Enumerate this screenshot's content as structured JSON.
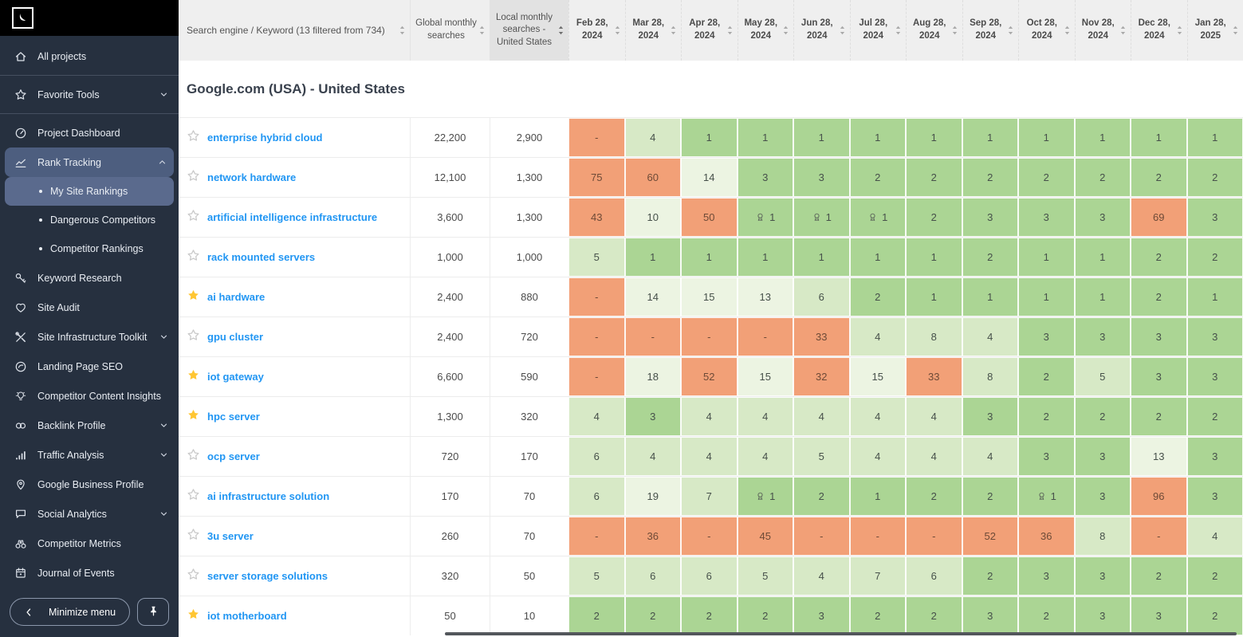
{
  "colors": {
    "sidebar_bg": "#26303f",
    "active_item": "#4d5e7f",
    "active_subitem": "#5a6a8d",
    "orange": "#f2a077",
    "green_strong": "#abd594",
    "green_light": "#d7e9c6",
    "green_pale": "#ecf4e2",
    "keyword_blue": "#2196f3",
    "favorite_yellow": "#ffc633"
  },
  "sidebar": {
    "minimize_label": "Minimize menu",
    "items": [
      {
        "label": "All projects",
        "icon": "home",
        "divider_after": true
      },
      {
        "label": "Favorite Tools",
        "icon": "star",
        "chevron": "down",
        "divider_after": true
      },
      {
        "label": "Project Dashboard",
        "icon": "dashboard"
      },
      {
        "label": "Rank Tracking",
        "icon": "chart-line",
        "chevron": "up",
        "active": true,
        "children": [
          "My Site Rankings",
          "Dangerous Competitors",
          "Competitor Rankings"
        ],
        "active_child": 0
      },
      {
        "label": "Keyword Research",
        "icon": "key"
      },
      {
        "label": "Site Audit",
        "icon": "heart"
      },
      {
        "label": "Site Infrastructure Toolkit",
        "icon": "tools",
        "chevron": "down"
      },
      {
        "label": "Landing Page SEO",
        "icon": "gauge"
      },
      {
        "label": "Competitor Content Insights",
        "icon": "bulb"
      },
      {
        "label": "Backlink Profile",
        "icon": "link",
        "chevron": "down"
      },
      {
        "label": "Traffic Analysis",
        "icon": "bar-chart",
        "chevron": "down"
      },
      {
        "label": "Google Business Profile",
        "icon": "map-pin"
      },
      {
        "label": "Social Analytics",
        "icon": "chat",
        "chevron": "down"
      },
      {
        "label": "Competitor Metrics",
        "icon": "binoculars"
      },
      {
        "label": "Journal of Events",
        "icon": "calendar"
      }
    ]
  },
  "table": {
    "keyword_header": "Search engine / Keyword (13 filtered from 734)",
    "global_header": "Global monthly searches",
    "local_header": "Local monthly searches - United States",
    "section_title": "Google.com (USA) - United States",
    "date_headers": [
      "Feb 28, 2024",
      "Mar 28, 2024",
      "Apr 28, 2024",
      "May 28, 2024",
      "Jun 28, 2024",
      "Jul 28, 2024",
      "Aug 28, 2024",
      "Sep 28, 2024",
      "Oct 28, 2024",
      "Nov 28, 2024",
      "Dec 28, 2024",
      "Jan 28, 2025"
    ],
    "rows": [
      {
        "keyword": "enterprise hybrid cloud",
        "favorite": false,
        "global": "22,200",
        "local": "2,900",
        "cells": [
          {
            "v": "-",
            "c": "or"
          },
          {
            "v": "4",
            "c": "g2"
          },
          {
            "v": "1",
            "c": "g1"
          },
          {
            "v": "1",
            "c": "g1"
          },
          {
            "v": "1",
            "c": "g1"
          },
          {
            "v": "1",
            "c": "g1"
          },
          {
            "v": "1",
            "c": "g1"
          },
          {
            "v": "1",
            "c": "g1"
          },
          {
            "v": "1",
            "c": "g1"
          },
          {
            "v": "1",
            "c": "g1"
          },
          {
            "v": "1",
            "c": "g1"
          },
          {
            "v": "1",
            "c": "g1"
          }
        ]
      },
      {
        "keyword": "network hardware",
        "favorite": false,
        "global": "12,100",
        "local": "1,300",
        "cells": [
          {
            "v": "75",
            "c": "or"
          },
          {
            "v": "60",
            "c": "or"
          },
          {
            "v": "14",
            "c": "g3"
          },
          {
            "v": "3",
            "c": "g1"
          },
          {
            "v": "3",
            "c": "g1"
          },
          {
            "v": "2",
            "c": "g1"
          },
          {
            "v": "2",
            "c": "g1"
          },
          {
            "v": "2",
            "c": "g1"
          },
          {
            "v": "2",
            "c": "g1"
          },
          {
            "v": "2",
            "c": "g1"
          },
          {
            "v": "2",
            "c": "g1"
          },
          {
            "v": "2",
            "c": "g1"
          }
        ]
      },
      {
        "keyword": "artificial intelligence infrastructure",
        "favorite": false,
        "global": "3,600",
        "local": "1,300",
        "cells": [
          {
            "v": "43",
            "c": "or"
          },
          {
            "v": "10",
            "c": "g3"
          },
          {
            "v": "50",
            "c": "or"
          },
          {
            "v": "1",
            "c": "g1",
            "badge": true
          },
          {
            "v": "1",
            "c": "g1",
            "badge": true
          },
          {
            "v": "1",
            "c": "g1",
            "badge": true
          },
          {
            "v": "2",
            "c": "g1"
          },
          {
            "v": "3",
            "c": "g1"
          },
          {
            "v": "3",
            "c": "g1"
          },
          {
            "v": "3",
            "c": "g1"
          },
          {
            "v": "69",
            "c": "or"
          },
          {
            "v": "3",
            "c": "g1"
          }
        ]
      },
      {
        "keyword": "rack mounted servers",
        "favorite": false,
        "global": "1,000",
        "local": "1,000",
        "cells": [
          {
            "v": "5",
            "c": "g2"
          },
          {
            "v": "1",
            "c": "g1"
          },
          {
            "v": "1",
            "c": "g1"
          },
          {
            "v": "1",
            "c": "g1"
          },
          {
            "v": "1",
            "c": "g1"
          },
          {
            "v": "1",
            "c": "g1"
          },
          {
            "v": "1",
            "c": "g1"
          },
          {
            "v": "2",
            "c": "g1"
          },
          {
            "v": "1",
            "c": "g1"
          },
          {
            "v": "1",
            "c": "g1"
          },
          {
            "v": "2",
            "c": "g1"
          },
          {
            "v": "2",
            "c": "g1"
          }
        ]
      },
      {
        "keyword": "ai hardware",
        "favorite": true,
        "global": "2,400",
        "local": "880",
        "cells": [
          {
            "v": "-",
            "c": "or"
          },
          {
            "v": "14",
            "c": "g3"
          },
          {
            "v": "15",
            "c": "g3"
          },
          {
            "v": "13",
            "c": "g3"
          },
          {
            "v": "6",
            "c": "g2"
          },
          {
            "v": "2",
            "c": "g1"
          },
          {
            "v": "1",
            "c": "g1"
          },
          {
            "v": "1",
            "c": "g1"
          },
          {
            "v": "1",
            "c": "g1"
          },
          {
            "v": "1",
            "c": "g1"
          },
          {
            "v": "2",
            "c": "g1"
          },
          {
            "v": "1",
            "c": "g1"
          }
        ]
      },
      {
        "keyword": "gpu cluster",
        "favorite": false,
        "global": "2,400",
        "local": "720",
        "cells": [
          {
            "v": "-",
            "c": "or"
          },
          {
            "v": "-",
            "c": "or"
          },
          {
            "v": "-",
            "c": "or"
          },
          {
            "v": "-",
            "c": "or"
          },
          {
            "v": "33",
            "c": "or"
          },
          {
            "v": "4",
            "c": "g2"
          },
          {
            "v": "8",
            "c": "g2"
          },
          {
            "v": "4",
            "c": "g2"
          },
          {
            "v": "3",
            "c": "g1"
          },
          {
            "v": "3",
            "c": "g1"
          },
          {
            "v": "3",
            "c": "g1"
          },
          {
            "v": "3",
            "c": "g1"
          }
        ]
      },
      {
        "keyword": "iot gateway",
        "favorite": true,
        "global": "6,600",
        "local": "590",
        "cells": [
          {
            "v": "-",
            "c": "or"
          },
          {
            "v": "18",
            "c": "g3"
          },
          {
            "v": "52",
            "c": "or"
          },
          {
            "v": "15",
            "c": "g3"
          },
          {
            "v": "32",
            "c": "or"
          },
          {
            "v": "15",
            "c": "g3"
          },
          {
            "v": "33",
            "c": "or"
          },
          {
            "v": "8",
            "c": "g2"
          },
          {
            "v": "2",
            "c": "g1"
          },
          {
            "v": "5",
            "c": "g2"
          },
          {
            "v": "3",
            "c": "g1"
          },
          {
            "v": "3",
            "c": "g1"
          }
        ]
      },
      {
        "keyword": "hpc server",
        "favorite": true,
        "global": "1,300",
        "local": "320",
        "cells": [
          {
            "v": "4",
            "c": "g2"
          },
          {
            "v": "3",
            "c": "g1"
          },
          {
            "v": "4",
            "c": "g2"
          },
          {
            "v": "4",
            "c": "g2"
          },
          {
            "v": "4",
            "c": "g2"
          },
          {
            "v": "4",
            "c": "g2"
          },
          {
            "v": "4",
            "c": "g2"
          },
          {
            "v": "3",
            "c": "g1"
          },
          {
            "v": "2",
            "c": "g1"
          },
          {
            "v": "2",
            "c": "g1"
          },
          {
            "v": "2",
            "c": "g1"
          },
          {
            "v": "2",
            "c": "g1"
          }
        ]
      },
      {
        "keyword": "ocp server",
        "favorite": false,
        "global": "720",
        "local": "170",
        "cells": [
          {
            "v": "6",
            "c": "g2"
          },
          {
            "v": "4",
            "c": "g2"
          },
          {
            "v": "4",
            "c": "g2"
          },
          {
            "v": "4",
            "c": "g2"
          },
          {
            "v": "5",
            "c": "g2"
          },
          {
            "v": "4",
            "c": "g2"
          },
          {
            "v": "4",
            "c": "g2"
          },
          {
            "v": "4",
            "c": "g2"
          },
          {
            "v": "3",
            "c": "g1"
          },
          {
            "v": "3",
            "c": "g1"
          },
          {
            "v": "13",
            "c": "g3"
          },
          {
            "v": "3",
            "c": "g1"
          }
        ]
      },
      {
        "keyword": "ai infrastructure solution",
        "favorite": false,
        "global": "170",
        "local": "70",
        "cells": [
          {
            "v": "6",
            "c": "g2"
          },
          {
            "v": "19",
            "c": "g3"
          },
          {
            "v": "7",
            "c": "g2"
          },
          {
            "v": "1",
            "c": "g1",
            "badge": true
          },
          {
            "v": "2",
            "c": "g1"
          },
          {
            "v": "1",
            "c": "g1"
          },
          {
            "v": "2",
            "c": "g1"
          },
          {
            "v": "2",
            "c": "g1"
          },
          {
            "v": "1",
            "c": "g1",
            "badge": true
          },
          {
            "v": "3",
            "c": "g1"
          },
          {
            "v": "96",
            "c": "or"
          },
          {
            "v": "3",
            "c": "g1"
          }
        ]
      },
      {
        "keyword": "3u server",
        "favorite": false,
        "global": "260",
        "local": "70",
        "cells": [
          {
            "v": "-",
            "c": "or"
          },
          {
            "v": "36",
            "c": "or"
          },
          {
            "v": "-",
            "c": "or"
          },
          {
            "v": "45",
            "c": "or"
          },
          {
            "v": "-",
            "c": "or"
          },
          {
            "v": "-",
            "c": "or"
          },
          {
            "v": "-",
            "c": "or"
          },
          {
            "v": "52",
            "c": "or"
          },
          {
            "v": "36",
            "c": "or"
          },
          {
            "v": "8",
            "c": "g2"
          },
          {
            "v": "-",
            "c": "or"
          },
          {
            "v": "4",
            "c": "g2"
          }
        ]
      },
      {
        "keyword": "server storage solutions",
        "favorite": false,
        "global": "320",
        "local": "50",
        "cells": [
          {
            "v": "5",
            "c": "g2"
          },
          {
            "v": "6",
            "c": "g2"
          },
          {
            "v": "6",
            "c": "g2"
          },
          {
            "v": "5",
            "c": "g2"
          },
          {
            "v": "4",
            "c": "g2"
          },
          {
            "v": "7",
            "c": "g2"
          },
          {
            "v": "6",
            "c": "g2"
          },
          {
            "v": "2",
            "c": "g1"
          },
          {
            "v": "3",
            "c": "g1"
          },
          {
            "v": "3",
            "c": "g1"
          },
          {
            "v": "2",
            "c": "g1"
          },
          {
            "v": "2",
            "c": "g1"
          }
        ]
      },
      {
        "keyword": "iot motherboard",
        "favorite": true,
        "global": "50",
        "local": "10",
        "cells": [
          {
            "v": "2",
            "c": "g1"
          },
          {
            "v": "2",
            "c": "g1"
          },
          {
            "v": "2",
            "c": "g1"
          },
          {
            "v": "2",
            "c": "g1"
          },
          {
            "v": "3",
            "c": "g1"
          },
          {
            "v": "2",
            "c": "g1"
          },
          {
            "v": "2",
            "c": "g1"
          },
          {
            "v": "3",
            "c": "g1"
          },
          {
            "v": "2",
            "c": "g1"
          },
          {
            "v": "3",
            "c": "g1"
          },
          {
            "v": "3",
            "c": "g1"
          },
          {
            "v": "2",
            "c": "g1"
          }
        ]
      }
    ]
  }
}
